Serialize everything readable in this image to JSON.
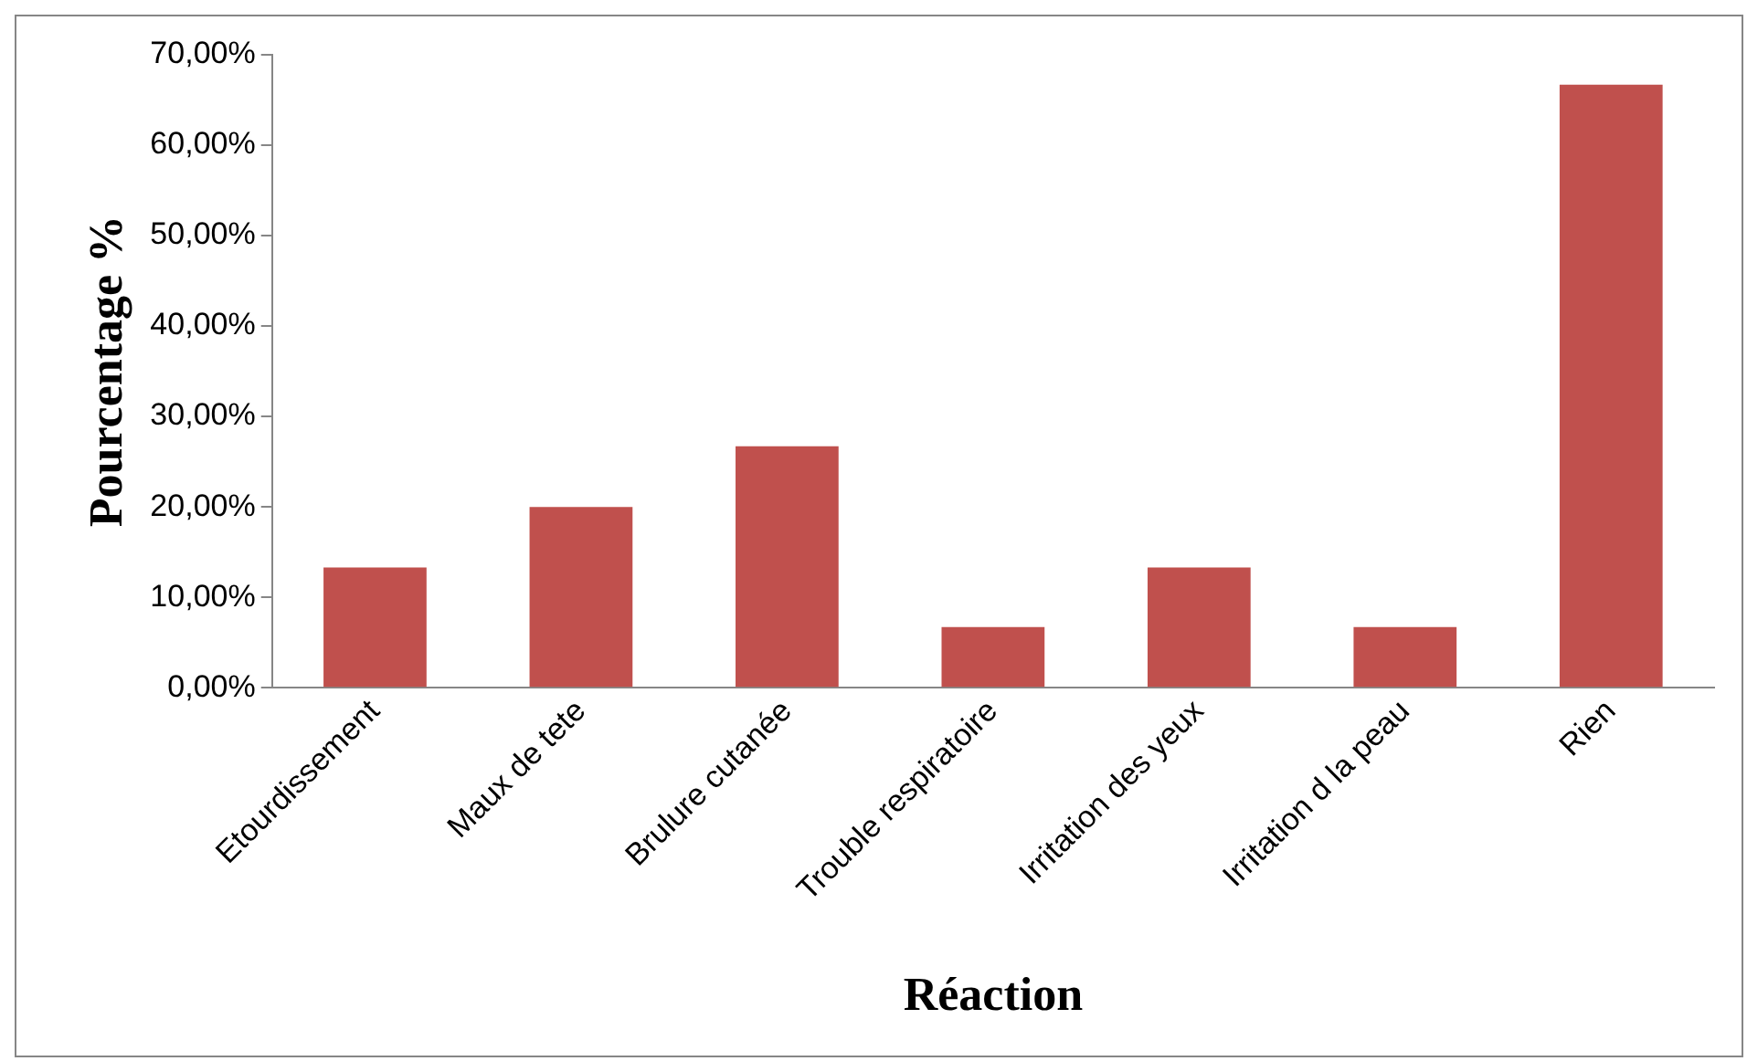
{
  "chart_data": {
    "type": "bar",
    "xlabel": "Réaction",
    "ylabel": "Pourcentage %",
    "categories": [
      "Etourdissement",
      "Maux de tete",
      "Brulure cutanée",
      "Trouble respiratoire",
      "Irritation des yeux",
      "Irritation d la peau",
      "Rien"
    ],
    "values": [
      13.3,
      20,
      26.7,
      6.7,
      13.3,
      6.7,
      66.7
    ],
    "color": "#c0504d",
    "ylim": [
      0,
      70
    ],
    "yticks": [
      {
        "value": 0,
        "label": "0,00%"
      },
      {
        "value": 10,
        "label": "10,00%"
      },
      {
        "value": 20,
        "label": "20,00%"
      },
      {
        "value": 30,
        "label": "30,00%"
      },
      {
        "value": 40,
        "label": "40,00%"
      },
      {
        "value": 50,
        "label": "50,00%"
      },
      {
        "value": 60,
        "label": "60,00%"
      },
      {
        "value": 70,
        "label": "70,00%"
      }
    ],
    "grid": false,
    "legend": false
  }
}
